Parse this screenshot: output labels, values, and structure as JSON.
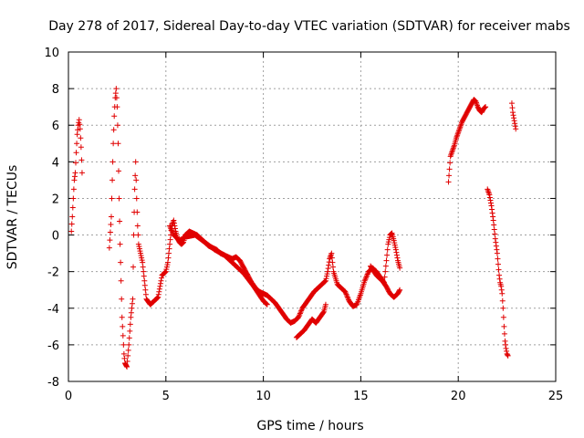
{
  "chart_data": {
    "type": "scatter",
    "title": "Day 278 of 2017, Sidereal Day-to-day VTEC variation (SDTVAR) for receiver mabs",
    "xlabel": "GPS time / hours",
    "ylabel": "SDTVAR / TECUs",
    "xlim": [
      0,
      25
    ],
    "ylim": [
      -8,
      10
    ],
    "x_ticks": [
      0,
      5,
      10,
      15,
      20,
      25
    ],
    "x_tick_labels": [
      "0",
      "5",
      "10",
      "15",
      "20",
      "25"
    ],
    "y_ticks": [
      -8,
      -6,
      -4,
      -2,
      0,
      2,
      4,
      6,
      8,
      10
    ],
    "y_tick_labels": [
      "-8",
      "-6",
      "-4",
      "-2",
      "0",
      "2",
      "4",
      "6",
      "8",
      "10"
    ],
    "grid": true,
    "marker": "+",
    "color": "#e00000",
    "series": [
      {
        "name": "SDTVAR",
        "segments": [
          [
            [
              0.15,
              0.2
            ],
            [
              0.2,
              1.0
            ],
            [
              0.25,
              2.0
            ],
            [
              0.3,
              3.0
            ],
            [
              0.35,
              3.4
            ],
            [
              0.4,
              4.5
            ],
            [
              0.45,
              5.5
            ],
            [
              0.5,
              6.0
            ],
            [
              0.55,
              6.3
            ],
            [
              0.6,
              5.8
            ],
            [
              0.65,
              4.8
            ],
            [
              0.7,
              3.4
            ]
          ],
          [
            [
              2.1,
              -0.7
            ],
            [
              2.2,
              1.0
            ],
            [
              2.25,
              3.0
            ],
            [
              2.3,
              5.0
            ],
            [
              2.35,
              6.5
            ],
            [
              2.4,
              7.5
            ],
            [
              2.45,
              8.0
            ],
            [
              2.5,
              7.0
            ],
            [
              2.55,
              5.0
            ],
            [
              2.6,
              2.0
            ],
            [
              2.65,
              -0.5
            ],
            [
              2.7,
              -2.5
            ],
            [
              2.75,
              -4.5
            ],
            [
              2.8,
              -5.5
            ],
            [
              2.85,
              -6.5
            ],
            [
              2.9,
              -7.0
            ],
            [
              3.0,
              -7.2
            ],
            [
              3.1,
              -6.0
            ],
            [
              3.2,
              -4.5
            ],
            [
              3.3,
              -3.5
            ],
            [
              3.35,
              0.0
            ],
            [
              3.4,
              2.5
            ],
            [
              3.45,
              4.0
            ],
            [
              3.5,
              2.0
            ],
            [
              3.55,
              0.5
            ],
            [
              3.6,
              -0.5
            ],
            [
              3.7,
              -1.0
            ],
            [
              3.8,
              -1.5
            ],
            [
              3.9,
              -2.5
            ],
            [
              4.0,
              -3.5
            ],
            [
              4.2,
              -3.8
            ],
            [
              4.4,
              -3.6
            ],
            [
              4.6,
              -3.4
            ],
            [
              4.7,
              -2.8
            ],
            [
              4.8,
              -2.2
            ],
            [
              5.0,
              -2.0
            ],
            [
              5.1,
              -1.5
            ],
            [
              5.2,
              -0.5
            ],
            [
              5.3,
              0.5
            ],
            [
              5.4,
              0.8
            ],
            [
              5.5,
              0.2
            ],
            [
              5.6,
              -0.2
            ],
            [
              5.7,
              -0.4
            ],
            [
              5.8,
              -0.5
            ],
            [
              5.9,
              -0.4
            ],
            [
              6.0,
              0.0
            ],
            [
              6.2,
              0.2
            ],
            [
              6.4,
              0.1
            ],
            [
              6.6,
              0.0
            ],
            [
              6.8,
              -0.2
            ],
            [
              7.0,
              -0.4
            ],
            [
              7.2,
              -0.6
            ],
            [
              7.4,
              -0.7
            ],
            [
              7.6,
              -0.8
            ],
            [
              7.8,
              -1.0
            ],
            [
              8.0,
              -1.1
            ],
            [
              8.2,
              -1.2
            ],
            [
              8.4,
              -1.3
            ],
            [
              8.6,
              -1.2
            ],
            [
              8.8,
              -1.4
            ],
            [
              9.0,
              -1.8
            ],
            [
              9.2,
              -2.2
            ],
            [
              9.4,
              -2.6
            ],
            [
              9.6,
              -2.9
            ],
            [
              9.8,
              -3.1
            ],
            [
              10.0,
              -3.2
            ],
            [
              10.2,
              -3.3
            ],
            [
              10.4,
              -3.5
            ],
            [
              10.6,
              -3.7
            ],
            [
              10.8,
              -4.0
            ],
            [
              11.0,
              -4.3
            ],
            [
              11.2,
              -4.6
            ],
            [
              11.4,
              -4.8
            ],
            [
              11.6,
              -4.7
            ],
            [
              11.8,
              -4.5
            ],
            [
              12.0,
              -4.0
            ],
            [
              12.2,
              -3.7
            ],
            [
              12.4,
              -3.4
            ],
            [
              12.6,
              -3.1
            ],
            [
              12.8,
              -2.9
            ],
            [
              13.0,
              -2.7
            ],
            [
              13.2,
              -2.5
            ],
            [
              13.3,
              -2.0
            ],
            [
              13.4,
              -1.3
            ],
            [
              13.5,
              -1.0
            ],
            [
              13.6,
              -2.0
            ],
            [
              13.8,
              -2.7
            ],
            [
              14.0,
              -2.9
            ],
            [
              14.2,
              -3.1
            ],
            [
              14.4,
              -3.6
            ],
            [
              14.6,
              -3.9
            ],
            [
              14.8,
              -3.8
            ],
            [
              15.0,
              -3.2
            ],
            [
              15.2,
              -2.5
            ],
            [
              15.4,
              -2.0
            ],
            [
              15.6,
              -1.8
            ],
            [
              15.8,
              -2.0
            ],
            [
              16.0,
              -2.3
            ],
            [
              16.2,
              -2.6
            ],
            [
              16.4,
              -0.5
            ],
            [
              16.5,
              0.0
            ],
            [
              16.6,
              0.1
            ],
            [
              16.7,
              -0.3
            ],
            [
              16.8,
              -0.8
            ],
            [
              16.9,
              -1.4
            ],
            [
              17.0,
              -1.8
            ]
          ],
          [
            [
              5.2,
              0.5
            ],
            [
              5.4,
              0.0
            ],
            [
              5.7,
              -0.3
            ],
            [
              6.0,
              -0.1
            ],
            [
              6.5,
              0.0
            ],
            [
              7.0,
              -0.4
            ],
            [
              7.5,
              -0.8
            ],
            [
              8.0,
              -1.1
            ],
            [
              8.5,
              -1.6
            ],
            [
              9.0,
              -2.1
            ],
            [
              9.5,
              -2.8
            ],
            [
              10.0,
              -3.6
            ],
            [
              10.2,
              -3.8
            ]
          ],
          [
            [
              11.7,
              -5.6
            ],
            [
              11.9,
              -5.4
            ],
            [
              12.1,
              -5.2
            ],
            [
              12.3,
              -4.9
            ],
            [
              12.5,
              -4.6
            ],
            [
              12.7,
              -4.8
            ],
            [
              12.9,
              -4.5
            ],
            [
              13.1,
              -4.2
            ],
            [
              13.2,
              -3.8
            ]
          ],
          [
            [
              15.5,
              -1.7
            ],
            [
              15.8,
              -2.2
            ],
            [
              16.1,
              -2.5
            ],
            [
              16.3,
              -2.8
            ],
            [
              16.5,
              -3.2
            ],
            [
              16.7,
              -3.4
            ],
            [
              16.9,
              -3.2
            ],
            [
              17.0,
              -3.0
            ]
          ],
          [
            [
              19.5,
              2.9
            ],
            [
              19.6,
              4.3
            ],
            [
              19.7,
              4.6
            ],
            [
              19.8,
              4.9
            ],
            [
              19.9,
              5.3
            ],
            [
              20.0,
              5.6
            ],
            [
              20.1,
              5.9
            ],
            [
              20.2,
              6.2
            ],
            [
              20.3,
              6.4
            ],
            [
              20.4,
              6.6
            ],
            [
              20.5,
              6.8
            ],
            [
              20.6,
              7.0
            ],
            [
              20.7,
              7.2
            ],
            [
              20.8,
              7.4
            ],
            [
              20.9,
              7.3
            ],
            [
              21.0,
              7.0
            ],
            [
              21.1,
              6.8
            ],
            [
              21.2,
              6.7
            ],
            [
              21.3,
              6.9
            ],
            [
              21.4,
              7.0
            ]
          ],
          [
            [
              21.5,
              2.5
            ],
            [
              21.6,
              2.2
            ],
            [
              21.7,
              1.6
            ],
            [
              21.8,
              0.8
            ],
            [
              21.9,
              -0.2
            ],
            [
              22.0,
              -1.0
            ],
            [
              22.1,
              -2.2
            ],
            [
              22.15,
              -2.6
            ],
            [
              22.2,
              -2.8
            ],
            [
              22.25,
              -3.2
            ],
            [
              22.3,
              -4.0
            ],
            [
              22.35,
              -5.0
            ],
            [
              22.4,
              -5.8
            ],
            [
              22.45,
              -6.2
            ],
            [
              22.5,
              -6.5
            ],
            [
              22.55,
              -6.6
            ]
          ],
          [
            [
              22.75,
              7.2
            ],
            [
              22.8,
              6.7
            ],
            [
              22.85,
              6.4
            ],
            [
              22.9,
              6.1
            ],
            [
              22.95,
              5.8
            ]
          ]
        ]
      }
    ]
  }
}
